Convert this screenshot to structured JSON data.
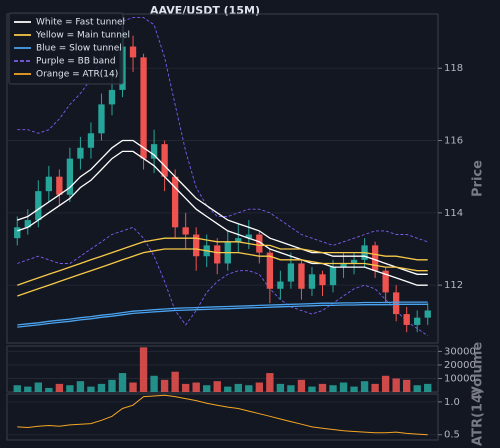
{
  "chart_data": [
    {
      "type": "candlestick",
      "title": "AAVE/USDT (15M)",
      "y_label": "Price",
      "up_color": "#26a69a",
      "down_color": "#ef5350",
      "ylim": [
        110.4,
        119.5
      ],
      "yticks": [
        112,
        114,
        116,
        118
      ],
      "grid": true,
      "legend": "upper left",
      "open": [
        113.3,
        113.6,
        113.8,
        114.6,
        115.0,
        114.5,
        115.5,
        115.8,
        116.2,
        117.0,
        117.4,
        118.6,
        118.3,
        115.5,
        115.9,
        115.0,
        113.6,
        113.4,
        112.8,
        113.1,
        112.6,
        113.2,
        113.3,
        113.4,
        112.9,
        111.9,
        112.1,
        112.6,
        111.9,
        112.3,
        112.0,
        112.5,
        112.6,
        112.7,
        113.1,
        112.4,
        111.8,
        111.2,
        110.9,
        111.1
      ],
      "high": [
        113.9,
        114.1,
        114.9,
        115.3,
        115.2,
        115.8,
        116.1,
        116.5,
        117.3,
        117.8,
        119.0,
        118.9,
        118.4,
        116.3,
        116.0,
        115.2,
        114.0,
        113.6,
        113.4,
        113.3,
        113.5,
        113.7,
        113.8,
        113.5,
        113.0,
        112.4,
        112.9,
        112.7,
        112.5,
        112.4,
        112.7,
        112.9,
        112.9,
        113.3,
        113.2,
        112.5,
        112.0,
        111.4,
        111.3,
        111.5
      ],
      "low": [
        113.1,
        113.4,
        113.6,
        114.3,
        114.2,
        114.3,
        115.2,
        115.5,
        116.0,
        116.7,
        117.2,
        117.9,
        115.2,
        115.1,
        114.6,
        113.3,
        113.0,
        112.4,
        112.5,
        112.3,
        112.4,
        112.9,
        113.0,
        112.6,
        111.5,
        111.6,
        111.9,
        111.6,
        111.7,
        111.7,
        111.8,
        112.2,
        112.3,
        112.5,
        112.2,
        111.5,
        111.0,
        110.7,
        110.7,
        110.9
      ],
      "close": [
        113.6,
        113.8,
        114.6,
        115.0,
        114.5,
        115.5,
        115.8,
        116.2,
        117.0,
        117.4,
        118.6,
        118.3,
        115.5,
        115.9,
        115.0,
        113.6,
        113.4,
        112.8,
        113.1,
        112.6,
        113.2,
        113.3,
        113.4,
        112.9,
        111.9,
        112.1,
        112.6,
        111.9,
        112.3,
        112.0,
        112.5,
        112.6,
        112.7,
        113.1,
        112.4,
        111.8,
        111.2,
        110.9,
        111.1,
        111.3
      ],
      "series": [
        {
          "name": "White = Fast tunnel",
          "color": "#ffffff",
          "values": [
            113.8,
            113.9,
            114.1,
            114.3,
            114.5,
            114.7,
            115.0,
            115.2,
            115.5,
            115.8,
            116.0,
            116.0,
            115.8,
            115.6,
            115.3,
            115.0,
            114.7,
            114.4,
            114.2,
            114.0,
            113.8,
            113.7,
            113.6,
            113.5,
            113.3,
            113.2,
            113.1,
            113.0,
            112.9,
            112.9,
            112.8,
            112.8,
            112.8,
            112.8,
            112.7,
            112.6,
            112.5,
            112.4,
            112.3,
            112.3
          ],
          "values_lower": [
            113.5,
            113.6,
            113.8,
            114.0,
            114.2,
            114.4,
            114.7,
            114.9,
            115.2,
            115.5,
            115.7,
            115.7,
            115.5,
            115.3,
            115.0,
            114.7,
            114.4,
            114.1,
            113.9,
            113.7,
            113.5,
            113.4,
            113.3,
            113.2,
            113.0,
            112.9,
            112.8,
            112.7,
            112.6,
            112.6,
            112.5,
            112.5,
            112.5,
            112.5,
            112.4,
            112.3,
            112.2,
            112.1,
            112.0,
            112.0
          ]
        },
        {
          "name": "Yellow = Main tunnel",
          "color": "#f7c948",
          "values": [
            112.0,
            112.1,
            112.2,
            112.3,
            112.4,
            112.5,
            112.6,
            112.7,
            112.8,
            112.9,
            113.0,
            113.1,
            113.2,
            113.25,
            113.3,
            113.3,
            113.3,
            113.3,
            113.25,
            113.2,
            113.2,
            113.2,
            113.15,
            113.1,
            113.1,
            113.0,
            113.0,
            113.0,
            112.95,
            112.9,
            112.9,
            112.9,
            112.9,
            112.9,
            112.85,
            112.8,
            112.8,
            112.75,
            112.7,
            112.7
          ],
          "values_lower": [
            111.7,
            111.8,
            111.9,
            112.0,
            112.1,
            112.2,
            112.3,
            112.4,
            112.5,
            112.6,
            112.7,
            112.8,
            112.9,
            112.95,
            113.0,
            113.0,
            113.0,
            113.0,
            112.95,
            112.9,
            112.9,
            112.9,
            112.85,
            112.8,
            112.8,
            112.7,
            112.7,
            112.7,
            112.65,
            112.6,
            112.6,
            112.6,
            112.6,
            112.6,
            112.55,
            112.5,
            112.5,
            112.45,
            112.4,
            112.4
          ]
        },
        {
          "name": "Blue = Slow tunnel",
          "color": "#4aa3f0",
          "values": [
            110.9,
            110.93,
            110.96,
            111.0,
            111.03,
            111.06,
            111.1,
            111.13,
            111.17,
            111.2,
            111.24,
            111.28,
            111.3,
            111.32,
            111.34,
            111.36,
            111.37,
            111.38,
            111.39,
            111.4,
            111.41,
            111.42,
            111.43,
            111.44,
            111.45,
            111.46,
            111.47,
            111.48,
            111.49,
            111.5,
            111.5,
            111.51,
            111.51,
            111.52,
            111.52,
            111.52,
            111.53,
            111.53,
            111.53,
            111.53
          ],
          "values_lower": [
            110.84,
            110.87,
            110.9,
            110.94,
            110.97,
            111.0,
            111.04,
            111.07,
            111.11,
            111.14,
            111.18,
            111.22,
            111.24,
            111.26,
            111.28,
            111.3,
            111.31,
            111.32,
            111.33,
            111.34,
            111.35,
            111.36,
            111.37,
            111.38,
            111.39,
            111.4,
            111.41,
            111.42,
            111.43,
            111.44,
            111.44,
            111.45,
            111.45,
            111.46,
            111.46,
            111.46,
            111.47,
            111.47,
            111.47,
            111.47
          ]
        },
        {
          "name": "Purple = BB band",
          "color": "#7b5cf0",
          "dashed": true,
          "values": [
            116.3,
            116.3,
            116.2,
            116.3,
            116.6,
            117.0,
            117.3,
            117.7,
            118.3,
            118.8,
            119.3,
            119.4,
            119.4,
            119.2,
            118.3,
            117.0,
            115.7,
            114.7,
            114.2,
            113.9,
            113.9,
            114.0,
            114.1,
            114.1,
            114.0,
            113.8,
            113.6,
            113.4,
            113.3,
            113.2,
            113.1,
            113.2,
            113.3,
            113.4,
            113.5,
            113.5,
            113.4,
            113.4,
            113.3,
            113.2
          ],
          "values_lower": [
            112.6,
            112.7,
            112.8,
            112.7,
            112.6,
            112.6,
            112.8,
            113.0,
            113.2,
            113.4,
            113.5,
            113.6,
            113.3,
            112.8,
            112.1,
            111.3,
            110.9,
            111.3,
            111.8,
            112.1,
            112.3,
            112.4,
            112.4,
            112.3,
            111.9,
            111.6,
            111.4,
            111.3,
            111.2,
            111.3,
            111.5,
            111.7,
            111.9,
            112.0,
            111.9,
            111.6,
            111.3,
            111.0,
            110.8,
            110.6
          ]
        }
      ]
    },
    {
      "type": "bar",
      "y_label": "Volume",
      "ylim": [
        0,
        34000
      ],
      "yticks": [
        10000,
        20000,
        30000
      ],
      "grid": true,
      "values": [
        5000,
        4000,
        7000,
        3000,
        6000,
        5000,
        8000,
        4000,
        6000,
        9000,
        14000,
        7000,
        33000,
        12000,
        9000,
        15000,
        6000,
        7000,
        5000,
        8000,
        4000,
        6000,
        5000,
        7000,
        14000,
        6000,
        5000,
        9000,
        4000,
        6000,
        5000,
        7000,
        4000,
        8000,
        6000,
        12000,
        10000,
        9000,
        5000,
        6000
      ]
    },
    {
      "type": "line",
      "y_label": "ATR(14)",
      "ylim": [
        0.42,
        1.12
      ],
      "yticks": [
        {
          "value": 0.5,
          "label": "0.5"
        },
        {
          "value": 1,
          "label": "1.0"
        }
      ],
      "grid": true,
      "series": [
        {
          "name": "Orange = ATR(14)",
          "color": "#f5a623",
          "values": [
            0.62,
            0.61,
            0.63,
            0.64,
            0.63,
            0.65,
            0.66,
            0.67,
            0.72,
            0.78,
            0.9,
            0.95,
            1.08,
            1.09,
            1.1,
            1.08,
            1.05,
            1.02,
            0.98,
            0.95,
            0.92,
            0.9,
            0.86,
            0.82,
            0.78,
            0.74,
            0.7,
            0.66,
            0.62,
            0.6,
            0.58,
            0.56,
            0.55,
            0.54,
            0.53,
            0.53,
            0.54,
            0.52,
            0.51,
            0.5
          ]
        }
      ]
    }
  ]
}
